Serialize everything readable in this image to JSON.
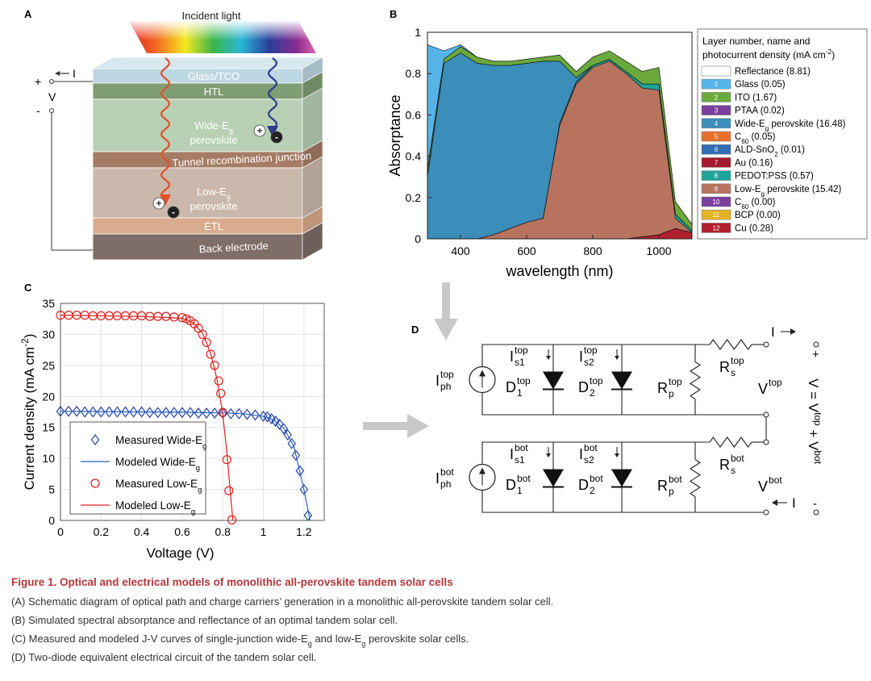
{
  "panel_a": {
    "label": "A",
    "incident_light": "Incident light",
    "glass": "Glass/TCO",
    "htl": "HTL",
    "wide": [
      [
        "Wide-E",
        {
          "sub": "g"
        }
      ],
      [
        "perovskite"
      ]
    ],
    "tunnel": "Tunnel recombination junction",
    "low": [
      [
        "Low-E",
        {
          "sub": "g"
        }
      ],
      [
        "perovskite"
      ]
    ],
    "etl": "ETL",
    "back": "Back electrode",
    "current": "I",
    "plus": "+",
    "voltage": "V",
    "minus": "-",
    "charge_plus": "+",
    "charge_minus": "-"
  },
  "chart_data": [
    {
      "panel_label": "B",
      "type": "area",
      "stacked": true,
      "xlabel": "wavelength (nm)",
      "ylabel": "Absorptance",
      "x": [
        300,
        350,
        400,
        450,
        500,
        550,
        600,
        650,
        700,
        750,
        800,
        850,
        900,
        950,
        1000,
        1050,
        1100
      ],
      "xlim": [
        300,
        1100
      ],
      "xticks": [
        400,
        600,
        800,
        1000
      ],
      "ylim": [
        0,
        1
      ],
      "yticks": [
        0,
        0.2,
        0.4,
        0.6,
        0.8,
        1
      ],
      "legend": "right",
      "legend_title": [
        [
          "Layer number, name and"
        ],
        [
          "photocurrent density (mA cm",
          {
            "sup": "-2"
          },
          ")"
        ]
      ],
      "series": [
        {
          "name": [
            "Reflectance (8.81)"
          ],
          "color": "#ffffff",
          "values": [
            0.06,
            0.09,
            0.06,
            0.12,
            0.14,
            0.14,
            0.13,
            0.12,
            0.11,
            0.19,
            0.12,
            0.09,
            0.14,
            0.19,
            0.17,
            0.82,
            0.93
          ]
        },
        {
          "number": "1",
          "name": [
            "Glass (0.05)"
          ],
          "color": "#56b4e9",
          "values": [
            0.6,
            0.04,
            0.01,
            0,
            0,
            0,
            0,
            0,
            0,
            0,
            0,
            0,
            0,
            0,
            0,
            0,
            0
          ]
        },
        {
          "number": "2",
          "name": [
            "ITO (1.67)"
          ],
          "color": "#6aaa3c",
          "values": [
            0.03,
            0.02,
            0.03,
            0.03,
            0.02,
            0.02,
            0.02,
            0.02,
            0.03,
            0.03,
            0.04,
            0.04,
            0.05,
            0.06,
            0.08,
            0.06,
            0.03
          ]
        },
        {
          "number": "3",
          "name": [
            "PTAA (0.02)"
          ],
          "color": "#7b3f9e",
          "values": [
            0.01,
            0,
            0,
            0,
            0,
            0,
            0,
            0,
            0,
            0,
            0,
            0,
            0,
            0,
            0,
            0,
            0
          ]
        },
        {
          "number": "4",
          "name": [
            "Wide-E",
            {
              "sub": "g"
            },
            " perovskite (16.48)"
          ],
          "color": "#3b8dba",
          "values": [
            0.3,
            0.85,
            0.9,
            0.85,
            0.82,
            0.79,
            0.77,
            0.76,
            0.3,
            0.02,
            0,
            0,
            0,
            0,
            0,
            0,
            0
          ]
        },
        {
          "number": "5",
          "name": [
            "C",
            {
              "sub": "60"
            },
            " (0.05)"
          ],
          "color": "#e8702a",
          "values": [
            0,
            0,
            0,
            0,
            0,
            0,
            0,
            0,
            0,
            0,
            0,
            0,
            0,
            0,
            0,
            0,
            0
          ]
        },
        {
          "number": "6",
          "name": [
            "ALD-SnO",
            {
              "sub": "2"
            },
            " (0.01)"
          ],
          "color": "#2f6db5",
          "values": [
            0,
            0,
            0,
            0,
            0,
            0,
            0,
            0,
            0,
            0,
            0,
            0,
            0,
            0,
            0,
            0,
            0
          ]
        },
        {
          "number": "7",
          "name": [
            "Au (0.16)"
          ],
          "color": "#a3192e",
          "values": [
            0,
            0,
            0,
            0,
            0,
            0,
            0,
            0,
            0,
            0,
            0,
            0,
            0,
            0,
            0,
            0,
            0
          ]
        },
        {
          "number": "8",
          "name": [
            "PEDOT:PSS (0.57)"
          ],
          "color": "#1ea59a",
          "values": [
            0,
            0,
            0,
            0,
            0,
            0,
            0,
            0,
            0.01,
            0.01,
            0.01,
            0.01,
            0.01,
            0.02,
            0.03,
            0.02,
            0.01
          ]
        },
        {
          "number": "9",
          "name": [
            "Low-E",
            {
              "sub": "g"
            },
            " perovskite (15.42)"
          ],
          "color": "#b8735e",
          "values": [
            0,
            0,
            0,
            0,
            0.02,
            0.05,
            0.08,
            0.1,
            0.55,
            0.75,
            0.83,
            0.86,
            0.8,
            0.72,
            0.7,
            0.05,
            0
          ]
        },
        {
          "number": "10",
          "name": [
            "C",
            {
              "sub": "60"
            },
            " (0.00)"
          ],
          "color": "#7b3f9e",
          "values": [
            0,
            0,
            0,
            0,
            0,
            0,
            0,
            0,
            0,
            0,
            0,
            0,
            0,
            0,
            0,
            0,
            0
          ]
        },
        {
          "number": "11",
          "name": [
            "BCP (0.00)"
          ],
          "color": "#e6b422",
          "values": [
            0,
            0,
            0,
            0,
            0,
            0,
            0,
            0,
            0,
            0,
            0,
            0,
            0,
            0,
            0,
            0,
            0
          ]
        },
        {
          "number": "12",
          "name": [
            "Cu (0.28)"
          ],
          "color": "#b0202e",
          "values": [
            0,
            0,
            0,
            0,
            0,
            0,
            0,
            0,
            0,
            0,
            0,
            0,
            0,
            0.01,
            0.02,
            0.05,
            0.03
          ]
        }
      ]
    },
    {
      "panel_label": "C",
      "type": "scatter",
      "xlabel": "Voltage (V)",
      "ylabel": [
        "Current density (mA cm",
        {
          "sup": "-2"
        },
        ")"
      ],
      "xlim": [
        0,
        1.3
      ],
      "xticks": [
        0,
        0.2,
        0.4,
        0.6,
        0.8,
        1,
        1.2
      ],
      "ylim": [
        0,
        35
      ],
      "yticks": [
        0,
        5,
        10,
        15,
        20,
        25,
        30,
        35
      ],
      "grid": true,
      "legend": "lower left",
      "series": [
        {
          "name": [
            "Measured Wide-E",
            {
              "sub": "g"
            }
          ],
          "color": "#2545a8",
          "style": "diamond",
          "x": [
            0,
            0.04,
            0.08,
            0.12,
            0.16,
            0.2,
            0.24,
            0.28,
            0.32,
            0.36,
            0.4,
            0.44,
            0.48,
            0.52,
            0.56,
            0.6,
            0.64,
            0.68,
            0.72,
            0.76,
            0.8,
            0.84,
            0.88,
            0.92,
            0.96,
            1.0,
            1.02,
            1.04,
            1.06,
            1.08,
            1.1,
            1.12,
            1.14,
            1.16,
            1.18,
            1.2,
            1.22
          ],
          "values": [
            17.6,
            17.6,
            17.6,
            17.5,
            17.5,
            17.5,
            17.5,
            17.5,
            17.5,
            17.5,
            17.5,
            17.4,
            17.4,
            17.4,
            17.4,
            17.4,
            17.4,
            17.3,
            17.3,
            17.3,
            17.3,
            17.2,
            17.2,
            17.1,
            17.0,
            16.8,
            16.7,
            16.4,
            16.0,
            15.5,
            14.8,
            13.8,
            12.4,
            10.5,
            8.0,
            5.0,
            0.8
          ]
        },
        {
          "name": [
            "Modeled Wide-E",
            {
              "sub": "g"
            }
          ],
          "color": "#2a62c8",
          "style": "line",
          "x": [
            0,
            0.2,
            0.4,
            0.6,
            0.8,
            0.9,
            1.0,
            1.05,
            1.1,
            1.15,
            1.2,
            1.23
          ],
          "values": [
            17.6,
            17.55,
            17.5,
            17.45,
            17.35,
            17.2,
            16.8,
            16.2,
            14.9,
            12.0,
            5.0,
            0
          ]
        },
        {
          "name": [
            "Measured Low-E",
            {
              "sub": "g"
            }
          ],
          "color": "#e0201e",
          "style": "circle",
          "x": [
            0,
            0.04,
            0.08,
            0.12,
            0.16,
            0.2,
            0.24,
            0.28,
            0.32,
            0.36,
            0.4,
            0.44,
            0.48,
            0.52,
            0.56,
            0.6,
            0.62,
            0.64,
            0.66,
            0.68,
            0.7,
            0.72,
            0.74,
            0.76,
            0.78,
            0.79,
            0.8,
            0.82,
            0.83,
            0.845
          ],
          "values": [
            33.1,
            33.1,
            33.1,
            33.1,
            33.0,
            33.0,
            33.0,
            33.0,
            33.0,
            33.0,
            33.0,
            32.9,
            32.9,
            32.9,
            32.8,
            32.7,
            32.5,
            32.2,
            31.7,
            31.0,
            30.0,
            28.7,
            26.8,
            25.0,
            22.5,
            20.5,
            17.4,
            9.8,
            4.8,
            0.1
          ]
        },
        {
          "name": [
            "Modeled Low-E",
            {
              "sub": "g"
            }
          ],
          "color": "#e0201e",
          "style": "line",
          "x": [
            0,
            0.2,
            0.4,
            0.6,
            0.65,
            0.7,
            0.74,
            0.77,
            0.8,
            0.82,
            0.84,
            0.85
          ],
          "values": [
            33.1,
            33.0,
            32.9,
            32.6,
            32.0,
            30.2,
            27.0,
            23.0,
            17.2,
            11.0,
            3.5,
            0
          ]
        }
      ]
    }
  ],
  "panel_d": {
    "label": "D",
    "labels": [
      {
        "base": "I",
        "sub": "ph",
        "sup": "top"
      },
      {
        "base": "I",
        "sub": "s1",
        "sup": "top"
      },
      {
        "base": "D",
        "sub": "1",
        "sup": "top"
      },
      {
        "base": "I",
        "sub": "s2",
        "sup": "top"
      },
      {
        "base": "D",
        "sub": "2",
        "sup": "top"
      },
      {
        "base": "R",
        "sub": "p",
        "sup": "top"
      },
      {
        "base": "R",
        "sub": "s",
        "sup": "top"
      },
      {
        "base": "V",
        "sup": "top"
      },
      {
        "base": "I",
        "sub": "ph",
        "sup": "bot"
      },
      {
        "base": "I",
        "sub": "s1",
        "sup": "bot"
      },
      {
        "base": "D",
        "sub": "1",
        "sup": "bot"
      },
      {
        "base": "I",
        "sub": "s2",
        "sup": "bot"
      },
      {
        "base": "D",
        "sub": "2",
        "sup": "bot"
      },
      {
        "base": "R",
        "sub": "p",
        "sup": "bot"
      },
      {
        "base": "R",
        "sub": "s",
        "sup": "bot"
      },
      {
        "base": "V",
        "sup": "bot"
      }
    ],
    "current_top": "I",
    "plus": "+",
    "current_bot": "I",
    "minus": "-",
    "sum": [
      "V = V",
      {
        "sup": "top"
      },
      " + V",
      {
        "sup": "bot"
      }
    ]
  },
  "caption": {
    "title": "Figure 1. Optical and electrical models of monolithic all-perovskite tandem solar cells",
    "lines": [
      [
        "(A) Schematic diagram of optical path and charge carriers’ generation in a monolithic all-perovskite tandem solar cell."
      ],
      [
        "(B) Simulated spectral absorptance and reflectance of an optimal tandem solar cell."
      ],
      [
        "(C) Measured and modeled J-V curves of single-junction wide-E",
        {
          "sub": "g"
        },
        " and low-E",
        {
          "sub": "g"
        },
        " perovskite solar cells."
      ],
      [
        "(D) Two-diode equivalent electrical circuit of the tandem solar cell."
      ]
    ]
  }
}
